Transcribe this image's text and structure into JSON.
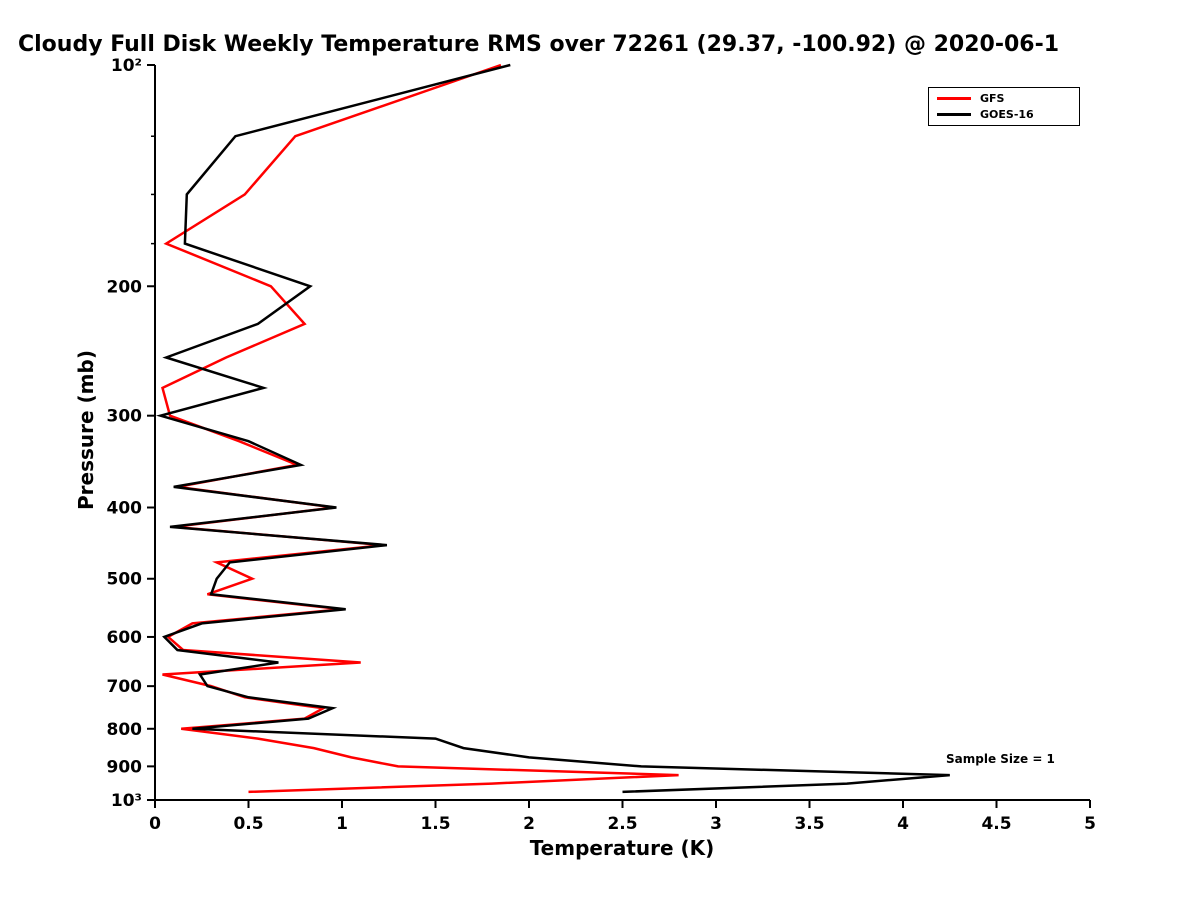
{
  "chart_data": {
    "type": "line",
    "title": "Cloudy Full Disk Weekly Temperature RMS over 72261 (29.37, -100.92) @ 2020-06-1",
    "xlabel": "Temperature (K)",
    "ylabel": "Pressure (mb)",
    "xlim": [
      0,
      5
    ],
    "ylim_pressure": [
      100,
      1000
    ],
    "y_scale": "log10",
    "y_axis_direction": "pressure increases downward",
    "grid": false,
    "x_ticks": [
      {
        "v": 0,
        "label": "0"
      },
      {
        "v": 0.5,
        "label": "0.5"
      },
      {
        "v": 1,
        "label": "1"
      },
      {
        "v": 1.5,
        "label": "1.5"
      },
      {
        "v": 2,
        "label": "2"
      },
      {
        "v": 2.5,
        "label": "2.5"
      },
      {
        "v": 3,
        "label": "3"
      },
      {
        "v": 3.5,
        "label": "3.5"
      },
      {
        "v": 4,
        "label": "4"
      },
      {
        "v": 4.5,
        "label": "4.5"
      },
      {
        "v": 5,
        "label": "5"
      }
    ],
    "y_ticks": [
      {
        "p": 100,
        "label": "10²"
      },
      {
        "p": 200,
        "label": "200"
      },
      {
        "p": 300,
        "label": "300"
      },
      {
        "p": 400,
        "label": "400"
      },
      {
        "p": 500,
        "label": "500"
      },
      {
        "p": 600,
        "label": "600"
      },
      {
        "p": 700,
        "label": "700"
      },
      {
        "p": 800,
        "label": "800"
      },
      {
        "p": 900,
        "label": "900"
      },
      {
        "p": 1000,
        "label": "10³"
      }
    ],
    "y_minor_ticks": [
      125,
      150,
      175
    ],
    "legend": {
      "position": "top-right",
      "entries": [
        {
          "name": "GFS",
          "color": "#ff0000"
        },
        {
          "name": "GOES-16",
          "color": "#000000"
        }
      ]
    },
    "annotation": {
      "text": "Sample Size = 1",
      "near_temp_k": 4.2,
      "near_pressure_mb": 890
    },
    "pressures_mb": [
      100,
      125,
      150,
      175,
      200,
      225,
      250,
      275,
      300,
      325,
      350,
      375,
      400,
      425,
      450,
      475,
      500,
      525,
      550,
      575,
      600,
      625,
      650,
      675,
      700,
      725,
      750,
      775,
      800,
      825,
      850,
      875,
      900,
      925,
      950,
      975
    ],
    "series": [
      {
        "name": "GFS",
        "color": "#ff0000",
        "values": [
          1.85,
          0.75,
          0.48,
          0.06,
          0.62,
          0.8,
          0.38,
          0.04,
          0.08,
          0.45,
          0.76,
          0.12,
          0.96,
          0.1,
          1.22,
          0.33,
          0.52,
          0.28,
          1.0,
          0.2,
          0.07,
          0.15,
          1.1,
          0.04,
          0.3,
          0.48,
          0.9,
          0.8,
          0.14,
          0.55,
          0.85,
          1.05,
          1.3,
          2.8,
          1.8,
          0.5
        ]
      },
      {
        "name": "GOES-16",
        "color": "#000000",
        "values": [
          1.9,
          0.43,
          0.17,
          0.16,
          0.83,
          0.55,
          0.06,
          0.58,
          0.03,
          0.5,
          0.78,
          0.1,
          0.97,
          0.08,
          1.24,
          0.4,
          0.33,
          0.3,
          1.02,
          0.25,
          0.05,
          0.12,
          0.66,
          0.24,
          0.28,
          0.5,
          0.95,
          0.82,
          0.2,
          1.5,
          1.65,
          2.0,
          2.6,
          4.25,
          3.7,
          2.5
        ]
      }
    ]
  }
}
